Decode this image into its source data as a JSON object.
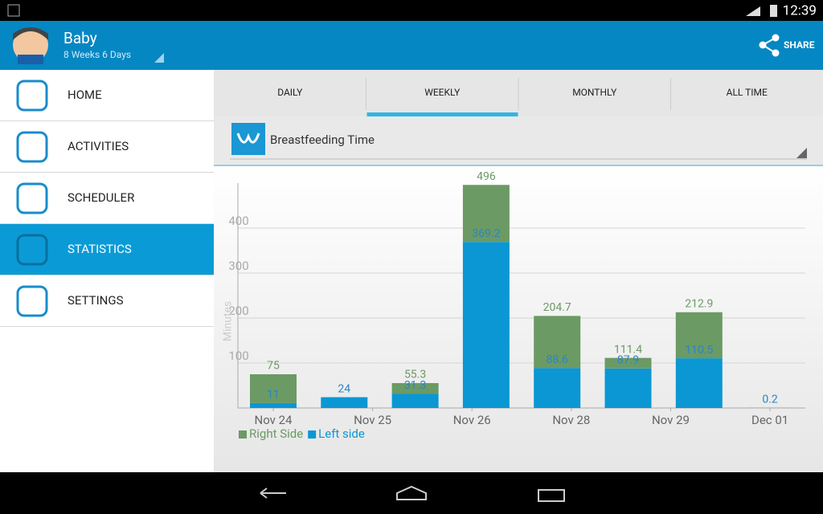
{
  "status": {
    "time": "12:39"
  },
  "header": {
    "title": "Baby",
    "subtitle": "8 Weeks 6 Days",
    "share": "SHARE"
  },
  "nav": {
    "items": [
      "HOME",
      "ACTIVITIES",
      "SCHEDULER",
      "STATISTICS",
      "SETTINGS"
    ],
    "selected": 3
  },
  "tabs": {
    "items": [
      "DAILY",
      "WEEKLY",
      "MONTHLY",
      "ALL TIME"
    ],
    "selected": 1
  },
  "dropdown": "Breastfeeding Time",
  "chart_data": {
    "type": "stacked_bar",
    "ylabel": "Minutes",
    "ylim": [
      0,
      500
    ],
    "yticks": [
      100,
      200,
      300,
      400
    ],
    "grid": true,
    "xticks": [
      "Nov 24",
      "Nov 25",
      "Nov 26",
      "Nov 28",
      "Nov 29",
      "Dec 01"
    ],
    "series": [
      {
        "name": "Left side",
        "color": "#0a97d4",
        "values": [
          11,
          24,
          31.3,
          369.2,
          88.6,
          87.9,
          110.5,
          0.2
        ]
      },
      {
        "name": "Right Side",
        "color": "#6b9a64",
        "values": [
          64,
          0,
          24,
          126.8,
          116.1,
          23.5,
          102.4,
          0
        ]
      }
    ],
    "totals": [
      75,
      24,
      55.3,
      496,
      204.7,
      111.4,
      212.9,
      0.2
    ],
    "legend": [
      "Right Side",
      "Left side"
    ]
  }
}
